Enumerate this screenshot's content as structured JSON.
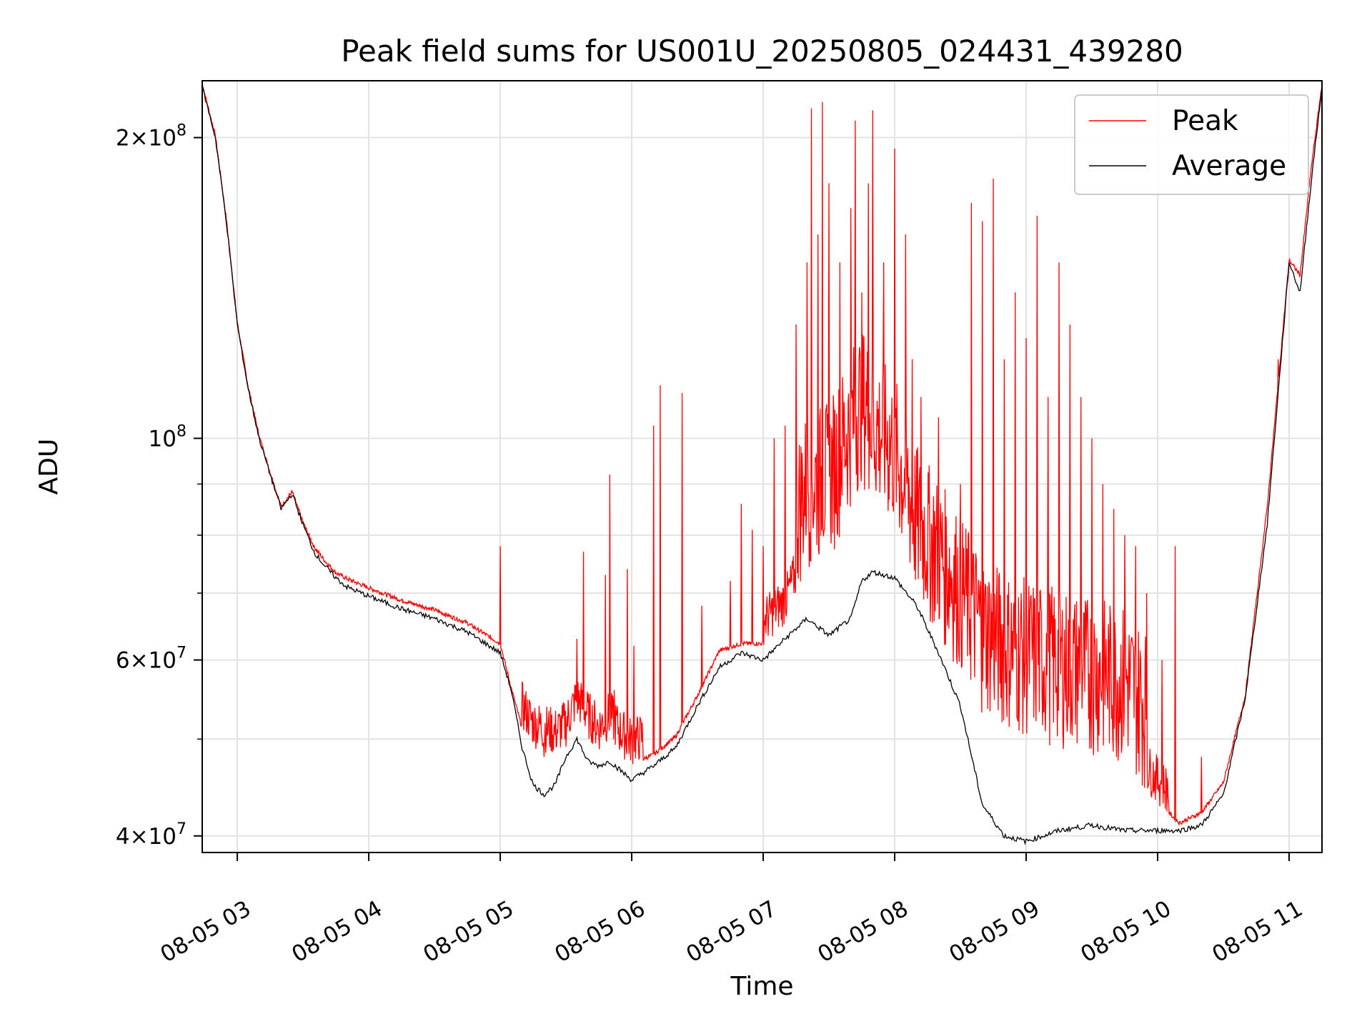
{
  "chart_data": {
    "type": "line",
    "title": "Peak field sums for US001U_20250805_024431_439280",
    "xlabel": "Time",
    "ylabel": "ADU",
    "y_scale": "log",
    "ylim": [
      38500000,
      228000000
    ],
    "xlim": [
      "08-05 02:44",
      "08-05 11:15"
    ],
    "grid": true,
    "legend_position": "upper right",
    "x_ticks": [
      "08-05 03",
      "08-05 04",
      "08-05 05",
      "08-05 06",
      "08-05 07",
      "08-05 08",
      "08-05 09",
      "08-05 10",
      "08-05 11"
    ],
    "y_major_ticks": [
      {
        "value": 40000000,
        "mantissa": "4",
        "exp": "7"
      },
      {
        "value": 60000000,
        "mantissa": "6",
        "exp": "7"
      },
      {
        "value": 100000000,
        "mantissa": "",
        "exp": "8"
      },
      {
        "value": 200000000,
        "mantissa": "2",
        "exp": "8"
      }
    ],
    "y_minor_ticks": [
      50000000,
      70000000,
      80000000,
      90000000
    ],
    "series": [
      {
        "name": "Peak",
        "color": "#ff0000",
        "baseline_x": [
          "02:44",
          "02:50",
          "02:55",
          "03:00",
          "03:05",
          "03:10",
          "03:15",
          "03:20",
          "03:25",
          "03:30",
          "03:35",
          "03:40",
          "03:45",
          "03:50",
          "04:00",
          "04:15",
          "04:30",
          "04:45",
          "05:00",
          "05:05",
          "05:10",
          "05:15",
          "05:20",
          "05:25",
          "05:30",
          "05:35",
          "05:40",
          "05:45",
          "05:50",
          "05:55",
          "06:00",
          "06:10",
          "06:20",
          "06:30",
          "06:40",
          "06:50",
          "07:00",
          "07:10",
          "07:20",
          "07:30",
          "07:40",
          "07:45",
          "07:50",
          "08:00",
          "08:10",
          "08:20",
          "08:30",
          "08:40",
          "08:50",
          "09:00",
          "09:15",
          "09:30",
          "09:45",
          "10:00",
          "10:10",
          "10:20",
          "10:30",
          "10:40",
          "10:50",
          "11:00",
          "11:05",
          "11:10",
          "11:15"
        ],
        "baseline_y": [
          225000000,
          200000000,
          165000000,
          130000000,
          112000000,
          100000000,
          92000000,
          85000000,
          88000000,
          82000000,
          77500000,
          75000000,
          73000000,
          72000000,
          70500000,
          68500000,
          67000000,
          65000000,
          62000000,
          56000000,
          51000000,
          49000000,
          48500000,
          48000000,
          49000000,
          52000000,
          50000000,
          48500000,
          50000000,
          48000000,
          47000000,
          48000000,
          50000000,
          55000000,
          61000000,
          62000000,
          62000000,
          65000000,
          74000000,
          75000000,
          85000000,
          90000000,
          85000000,
          80000000,
          68000000,
          63000000,
          58000000,
          53000000,
          51000000,
          50000000,
          49000000,
          48000000,
          47000000,
          43000000,
          41000000,
          42000000,
          45000000,
          55000000,
          85000000,
          150000000,
          145000000,
          185000000,
          225000000
        ],
        "spikes": [
          {
            "x": "05:00",
            "y": 78000000
          },
          {
            "x": "05:20",
            "y": 48000000
          },
          {
            "x": "05:28",
            "y": 50000000
          },
          {
            "x": "05:35",
            "y": 63000000
          },
          {
            "x": "05:38",
            "y": 77000000
          },
          {
            "x": "05:48",
            "y": 73000000
          },
          {
            "x": "05:50",
            "y": 92000000
          },
          {
            "x": "05:52",
            "y": 56000000
          },
          {
            "x": "05:58",
            "y": 74000000
          },
          {
            "x": "06:01",
            "y": 62000000
          },
          {
            "x": "06:10",
            "y": 103000000
          },
          {
            "x": "06:13",
            "y": 113000000
          },
          {
            "x": "06:23",
            "y": 111000000
          },
          {
            "x": "06:32",
            "y": 68000000
          },
          {
            "x": "06:45",
            "y": 72000000
          },
          {
            "x": "06:50",
            "y": 86000000
          },
          {
            "x": "06:55",
            "y": 81000000
          },
          {
            "x": "07:00",
            "y": 78000000
          },
          {
            "x": "07:05",
            "y": 100000000
          },
          {
            "x": "07:10",
            "y": 103000000
          },
          {
            "x": "07:15",
            "y": 130000000
          },
          {
            "x": "07:20",
            "y": 150000000
          },
          {
            "x": "07:22",
            "y": 214000000
          },
          {
            "x": "07:25",
            "y": 160000000
          },
          {
            "x": "07:27",
            "y": 217000000
          },
          {
            "x": "07:30",
            "y": 180000000
          },
          {
            "x": "07:35",
            "y": 150000000
          },
          {
            "x": "07:40",
            "y": 170000000
          },
          {
            "x": "07:42",
            "y": 208000000
          },
          {
            "x": "07:45",
            "y": 140000000
          },
          {
            "x": "07:48",
            "y": 180000000
          },
          {
            "x": "07:50",
            "y": 213000000
          },
          {
            "x": "07:55",
            "y": 150000000
          },
          {
            "x": "08:00",
            "y": 195000000
          },
          {
            "x": "08:05",
            "y": 160000000
          },
          {
            "x": "08:08",
            "y": 120000000
          },
          {
            "x": "08:12",
            "y": 110000000
          },
          {
            "x": "08:20",
            "y": 105000000
          },
          {
            "x": "08:30",
            "y": 90000000
          },
          {
            "x": "08:35",
            "y": 172000000
          },
          {
            "x": "08:40",
            "y": 165000000
          },
          {
            "x": "08:45",
            "y": 182000000
          },
          {
            "x": "08:50",
            "y": 120000000
          },
          {
            "x": "08:55",
            "y": 140000000
          },
          {
            "x": "09:00",
            "y": 126000000
          },
          {
            "x": "09:05",
            "y": 167000000
          },
          {
            "x": "09:10",
            "y": 110000000
          },
          {
            "x": "09:15",
            "y": 150000000
          },
          {
            "x": "09:20",
            "y": 130000000
          },
          {
            "x": "09:25",
            "y": 110000000
          },
          {
            "x": "09:30",
            "y": 100000000
          },
          {
            "x": "09:35",
            "y": 90000000
          },
          {
            "x": "09:40",
            "y": 85000000
          },
          {
            "x": "09:45",
            "y": 80000000
          },
          {
            "x": "09:50",
            "y": 78000000
          },
          {
            "x": "09:55",
            "y": 70000000
          },
          {
            "x": "10:02",
            "y": 60000000
          },
          {
            "x": "10:08",
            "y": 78000000
          },
          {
            "x": "10:20",
            "y": 48000000
          },
          {
            "x": "10:55",
            "y": 120000000
          }
        ]
      },
      {
        "name": "Average",
        "color": "#000000",
        "x": [
          "02:44",
          "02:50",
          "02:55",
          "03:00",
          "03:05",
          "03:10",
          "03:15",
          "03:20",
          "03:25",
          "03:30",
          "03:35",
          "03:40",
          "03:45",
          "03:50",
          "04:00",
          "04:15",
          "04:30",
          "04:45",
          "05:00",
          "05:05",
          "05:10",
          "05:15",
          "05:20",
          "05:25",
          "05:30",
          "05:35",
          "05:40",
          "05:45",
          "05:50",
          "05:55",
          "06:00",
          "06:10",
          "06:20",
          "06:30",
          "06:40",
          "06:50",
          "07:00",
          "07:10",
          "07:20",
          "07:30",
          "07:40",
          "07:45",
          "07:50",
          "08:00",
          "08:10",
          "08:20",
          "08:30",
          "08:40",
          "08:50",
          "09:00",
          "09:15",
          "09:30",
          "09:45",
          "10:00",
          "10:10",
          "10:20",
          "10:30",
          "10:40",
          "10:50",
          "11:00",
          "11:05",
          "11:10",
          "11:15"
        ],
        "y": [
          225000000,
          200000000,
          165000000,
          130000000,
          112000000,
          100000000,
          92000000,
          85000000,
          88000000,
          82000000,
          77000000,
          74500000,
          72500000,
          71000000,
          69500000,
          67500000,
          66000000,
          64000000,
          61000000,
          56000000,
          49000000,
          45000000,
          44000000,
          45000000,
          48000000,
          50000000,
          47500000,
          47000000,
          47500000,
          46500000,
          45500000,
          47000000,
          49000000,
          54000000,
          59000000,
          61000000,
          60000000,
          63000000,
          66000000,
          63500000,
          66000000,
          72000000,
          73500000,
          72500000,
          68000000,
          61000000,
          54000000,
          43000000,
          40000000,
          39500000,
          40500000,
          41000000,
          40500000,
          40500000,
          40500000,
          41000000,
          44000000,
          55000000,
          82000000,
          150000000,
          140000000,
          180000000,
          225000000
        ]
      }
    ]
  }
}
